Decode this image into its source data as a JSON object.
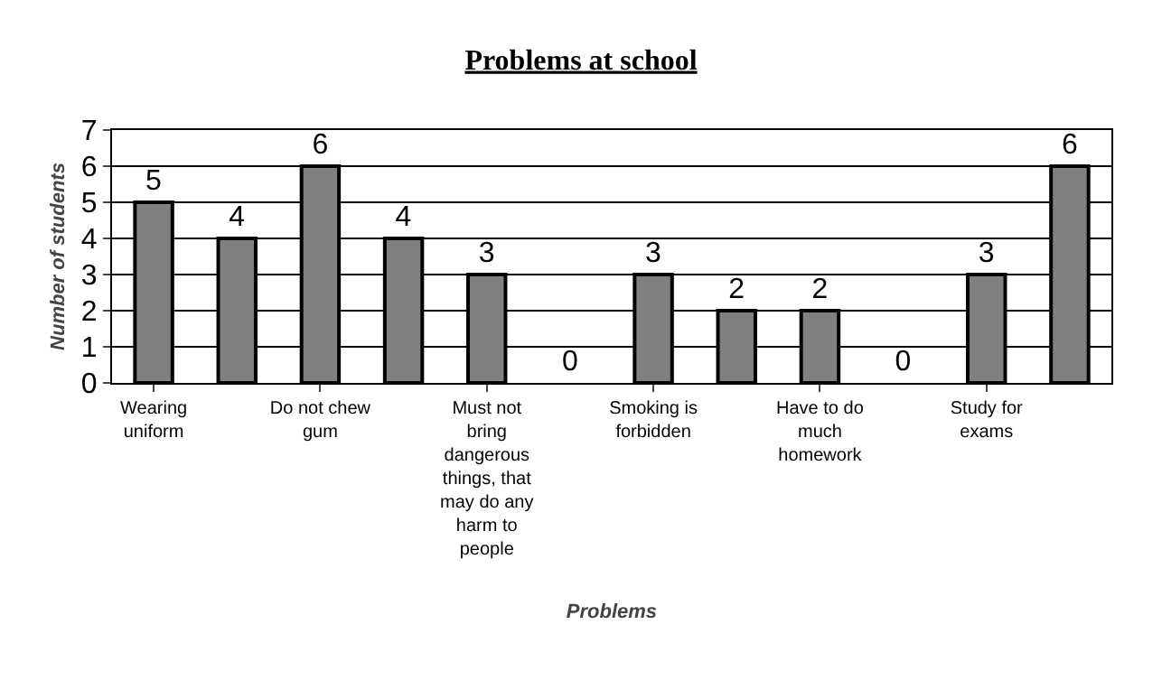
{
  "chart_data": {
    "type": "bar",
    "title": "Problems at school",
    "xlabel": "Problems",
    "ylabel": "Number of students",
    "categories": [
      "Wearing uniform",
      null,
      "Do not chew gum",
      null,
      "Must not bring dangerous things, that may do any harm to people",
      null,
      "Smoking is forbidden",
      null,
      "Have to do much homework",
      null,
      "Study for exams",
      null
    ],
    "values": [
      5,
      4,
      6,
      4,
      3,
      0,
      3,
      2,
      2,
      0,
      3,
      6
    ],
    "color": "#808080",
    "ylim": [
      0,
      7
    ],
    "yticks": [
      0,
      1,
      2,
      3,
      4,
      5,
      6,
      7
    ],
    "grid": "y",
    "data_labels": true,
    "legend": false
  }
}
